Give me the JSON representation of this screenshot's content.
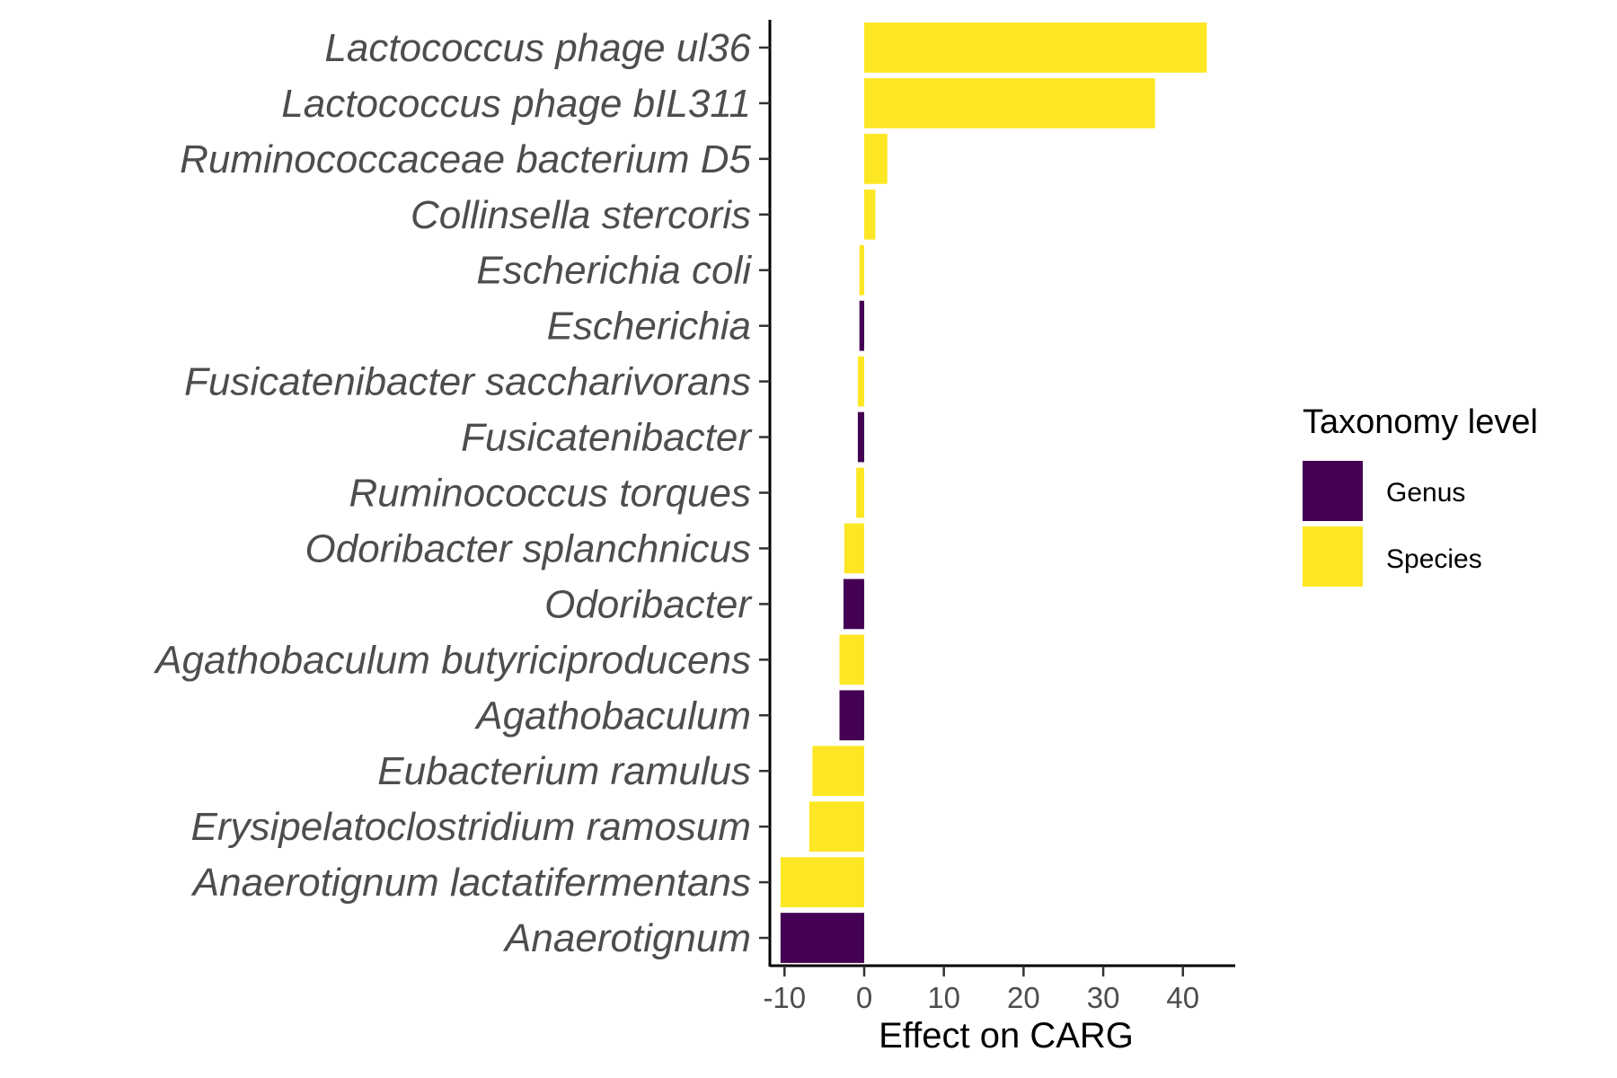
{
  "chart_data": {
    "type": "bar",
    "orientation": "horizontal",
    "title": "",
    "xlabel": "Effect on CARG",
    "ylabel": "",
    "xlim": [
      -11.5,
      46
    ],
    "xticks": [
      -10,
      0,
      10,
      20,
      30,
      40
    ],
    "xtick_labels": [
      "-10",
      "0",
      "10",
      "20",
      "30",
      "40"
    ],
    "grid": false,
    "legend": {
      "title": "Taxonomy level",
      "placement": "right",
      "entries": [
        {
          "name": "Genus",
          "color": "#440154"
        },
        {
          "name": "Species",
          "color": "#FDE725"
        }
      ]
    },
    "bars": [
      {
        "label": "Lactococcus phage ul36",
        "value": 43.0,
        "level": "Species"
      },
      {
        "label": "Lactococcus phage bIL311",
        "value": 36.5,
        "level": "Species"
      },
      {
        "label": "Ruminococcaceae bacterium D5",
        "value": 2.9,
        "level": "Species"
      },
      {
        "label": "Collinsella stercoris",
        "value": 1.4,
        "level": "Species"
      },
      {
        "label": "Escherichia coli",
        "value": -0.6,
        "level": "Species"
      },
      {
        "label": "Escherichia",
        "value": -0.6,
        "level": "Genus"
      },
      {
        "label": "Fusicatenibacter saccharivorans",
        "value": -0.8,
        "level": "Species"
      },
      {
        "label": "Fusicatenibacter",
        "value": -0.8,
        "level": "Genus"
      },
      {
        "label": "Ruminococcus torques",
        "value": -1.0,
        "level": "Species"
      },
      {
        "label": "Odoribacter splanchnicus",
        "value": -2.5,
        "level": "Species"
      },
      {
        "label": "Odoribacter",
        "value": -2.6,
        "level": "Genus"
      },
      {
        "label": "Agathobaculum butyriciproducens",
        "value": -3.1,
        "level": "Species"
      },
      {
        "label": "Agathobaculum",
        "value": -3.1,
        "level": "Genus"
      },
      {
        "label": "Eubacterium ramulus",
        "value": -6.5,
        "level": "Species"
      },
      {
        "label": "Erysipelatoclostridium ramosum",
        "value": -6.9,
        "level": "Species"
      },
      {
        "label": "Anaerotignum lactatifermentans",
        "value": -10.5,
        "level": "Species"
      },
      {
        "label": "Anaerotignum",
        "value": -10.5,
        "level": "Genus"
      }
    ]
  }
}
